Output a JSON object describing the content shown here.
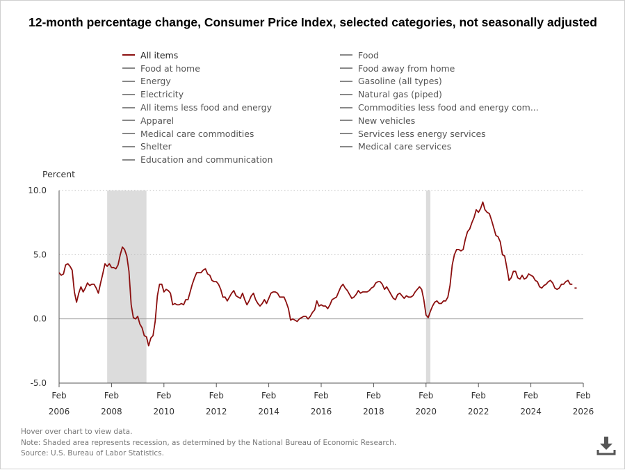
{
  "title": "12-month percentage change, Consumer Price Index, selected categories, not seasonally adjusted",
  "legend": [
    {
      "label": "All items",
      "active": true
    },
    {
      "label": "Food",
      "active": false
    },
    {
      "label": "Food at home",
      "active": false
    },
    {
      "label": "Food away from home",
      "active": false
    },
    {
      "label": "Energy",
      "active": false
    },
    {
      "label": "Gasoline (all types)",
      "active": false
    },
    {
      "label": "Electricity",
      "active": false
    },
    {
      "label": "Natural gas (piped)",
      "active": false
    },
    {
      "label": "All items less food and energy",
      "active": false
    },
    {
      "label": "Commodities less food and energy com...",
      "active": false
    },
    {
      "label": "Apparel",
      "active": false
    },
    {
      "label": "New vehicles",
      "active": false
    },
    {
      "label": "Medical care commodities",
      "active": false
    },
    {
      "label": "Services less energy services",
      "active": false
    },
    {
      "label": "Shelter",
      "active": false
    },
    {
      "label": "Medical care services",
      "active": false
    },
    {
      "label": "Education and communication",
      "active": false
    }
  ],
  "notes": {
    "hover": "Hover over chart to view data.",
    "recession": "Note: Shaded area represents recession, as determined by the National Bureau of Economic Research.",
    "source": "Source: U.S. Bureau of Labor Statistics."
  },
  "colors": {
    "series": "#8b0f0f",
    "inactive_legend": "#888888",
    "recession": "#dcdcdc",
    "grid": "#bdbdbd",
    "axis": "#555555"
  },
  "icons": {
    "download": "download-icon"
  },
  "chart_data": {
    "type": "line",
    "title": "12-month percentage change, Consumer Price Index, selected categories, not seasonally adjusted",
    "ylabel": "Percent",
    "xlabel": "",
    "ylim": [
      -5,
      10
    ],
    "yticks": [
      {
        "value": -5,
        "label": "-5.0"
      },
      {
        "value": 0,
        "label": "0.0"
      },
      {
        "value": 5,
        "label": "5.0"
      },
      {
        "value": 10,
        "label": "10.0"
      }
    ],
    "xlim": [
      2006.083,
      2026.083
    ],
    "xticks": [
      {
        "value": 2006.083,
        "month": "Feb",
        "year": "2006"
      },
      {
        "value": 2008.083,
        "month": "Feb",
        "year": "2008"
      },
      {
        "value": 2010.083,
        "month": "Feb",
        "year": "2010"
      },
      {
        "value": 2012.083,
        "month": "Feb",
        "year": "2012"
      },
      {
        "value": 2014.083,
        "month": "Feb",
        "year": "2014"
      },
      {
        "value": 2016.083,
        "month": "Feb",
        "year": "2016"
      },
      {
        "value": 2018.083,
        "month": "Feb",
        "year": "2018"
      },
      {
        "value": 2020.083,
        "month": "Feb",
        "year": "2020"
      },
      {
        "value": 2022.083,
        "month": "Feb",
        "year": "2022"
      },
      {
        "value": 2024.083,
        "month": "Feb",
        "year": "2024"
      },
      {
        "value": 2026.083,
        "month": "Feb",
        "year": "2026"
      }
    ],
    "grid": true,
    "recessions": [
      {
        "start": 2007.917,
        "end": 2009.417
      },
      {
        "start": 2020.083,
        "end": 2020.25
      }
    ],
    "series": [
      {
        "name": "All items",
        "start": 2006.083,
        "step": 0.08333,
        "gap_after_index": 235,
        "values": [
          3.6,
          3.4,
          3.5,
          4.2,
          4.3,
          4.1,
          3.8,
          2.1,
          1.3,
          2.0,
          2.5,
          2.1,
          2.4,
          2.8,
          2.6,
          2.7,
          2.7,
          2.4,
          2.0,
          2.8,
          3.5,
          4.3,
          4.1,
          4.3,
          4.0,
          4.0,
          3.9,
          4.2,
          5.0,
          5.6,
          5.4,
          4.9,
          3.7,
          1.1,
          0.1,
          0.0,
          0.2,
          -0.4,
          -0.7,
          -1.3,
          -1.4,
          -2.1,
          -1.5,
          -1.3,
          -0.2,
          1.8,
          2.7,
          2.7,
          2.1,
          2.3,
          2.2,
          2.0,
          1.1,
          1.2,
          1.1,
          1.1,
          1.2,
          1.1,
          1.5,
          1.5,
          2.1,
          2.7,
          3.2,
          3.6,
          3.6,
          3.6,
          3.8,
          3.9,
          3.5,
          3.4,
          3.0,
          2.9,
          2.9,
          2.7,
          2.3,
          1.7,
          1.7,
          1.4,
          1.7,
          2.0,
          2.2,
          1.8,
          1.7,
          1.6,
          2.0,
          1.5,
          1.1,
          1.4,
          1.8,
          2.0,
          1.5,
          1.2,
          1.0,
          1.2,
          1.5,
          1.2,
          1.6,
          2.0,
          2.1,
          2.1,
          2.0,
          1.7,
          1.7,
          1.7,
          1.3,
          0.8,
          -0.1,
          0.0,
          -0.1,
          -0.2,
          0.0,
          0.1,
          0.2,
          0.2,
          0.0,
          0.2,
          0.5,
          0.7,
          1.4,
          1.0,
          1.1,
          1.0,
          1.0,
          0.8,
          1.1,
          1.5,
          1.6,
          1.7,
          2.1,
          2.5,
          2.7,
          2.4,
          2.2,
          1.9,
          1.6,
          1.7,
          1.9,
          2.2,
          2.0,
          2.1,
          2.1,
          2.1,
          2.2,
          2.4,
          2.5,
          2.8,
          2.9,
          2.9,
          2.7,
          2.3,
          2.5,
          2.2,
          1.9,
          1.6,
          1.5,
          1.9,
          2.0,
          1.8,
          1.6,
          1.8,
          1.7,
          1.7,
          1.8,
          2.1,
          2.3,
          2.5,
          2.3,
          1.5,
          0.3,
          0.1,
          0.6,
          1.0,
          1.3,
          1.4,
          1.2,
          1.2,
          1.4,
          1.4,
          1.7,
          2.6,
          4.2,
          5.0,
          5.4,
          5.4,
          5.3,
          5.4,
          6.2,
          6.8,
          7.0,
          7.5,
          7.9,
          8.5,
          8.3,
          8.6,
          9.1,
          8.5,
          8.3,
          8.2,
          7.7,
          7.1,
          6.5,
          6.4,
          6.0,
          5.0,
          4.9,
          4.0,
          3.0,
          3.2,
          3.7,
          3.7,
          3.2,
          3.1,
          3.4,
          3.1,
          3.2,
          3.5,
          3.4,
          3.3,
          3.0,
          2.9,
          2.5,
          2.4,
          2.6,
          2.7,
          2.9,
          3.0,
          2.8,
          2.4,
          2.3,
          2.4,
          2.7,
          2.7,
          2.9,
          3.0,
          2.7,
          2.7,
          2.4,
          2.4
        ]
      }
    ]
  }
}
